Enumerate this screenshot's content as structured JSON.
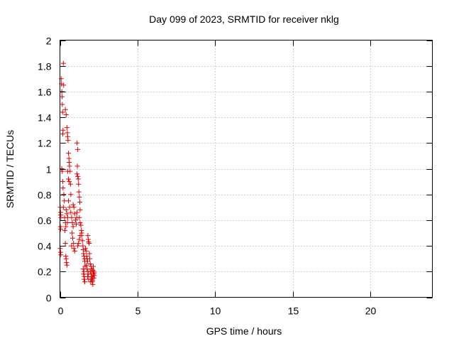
{
  "chart_data": {
    "type": "scatter",
    "title": "Day 099 of 2023, SRMTID for receiver nklg",
    "xlabel": "GPS time / hours",
    "ylabel": "SRMTID / TECUs",
    "xlim": [
      0,
      24
    ],
    "ylim": [
      0,
      2
    ],
    "xticks": [
      0,
      5,
      10,
      15,
      20
    ],
    "xtick_labels": [
      "0",
      "5",
      "10",
      "15",
      "20"
    ],
    "yticks": [
      0,
      0.2,
      0.4,
      0.6,
      0.8,
      1,
      1.2,
      1.4,
      1.6,
      1.8,
      2
    ],
    "ytick_labels": [
      "0",
      "0.2",
      "0.4",
      "0.6",
      "0.8",
      "1",
      "1.2",
      "1.4",
      "1.6",
      "1.8",
      "2"
    ],
    "grid": true,
    "marker": "+",
    "marker_color": "#e00000",
    "series": [
      {
        "name": "SRMTID",
        "points": [
          [
            0.02,
            0.7
          ],
          [
            0.04,
            0.66
          ],
          [
            0.05,
            0.64
          ],
          [
            0.06,
            0.62
          ],
          [
            0.03,
            0.55
          ],
          [
            0.05,
            0.53
          ],
          [
            0.02,
            0.38
          ],
          [
            0.04,
            0.35
          ],
          [
            0.06,
            0.33
          ],
          [
            0.08,
            1.7
          ],
          [
            0.1,
            1.66
          ],
          [
            0.12,
            1.6
          ],
          [
            0.14,
            1.56
          ],
          [
            0.15,
            1.5
          ],
          [
            0.17,
            1.44
          ],
          [
            0.2,
            1.3
          ],
          [
            0.18,
            1.27
          ],
          [
            0.22,
            1.82
          ],
          [
            0.24,
            1.65
          ],
          [
            0.12,
            1.0
          ],
          [
            0.15,
            0.98
          ],
          [
            0.18,
            0.9
          ],
          [
            0.2,
            0.85
          ],
          [
            0.25,
            0.8
          ],
          [
            0.28,
            0.75
          ],
          [
            0.22,
            0.7
          ],
          [
            0.3,
            0.62
          ],
          [
            0.35,
            0.58
          ],
          [
            0.38,
            0.55
          ],
          [
            0.32,
            0.52
          ],
          [
            0.35,
            1.46
          ],
          [
            0.4,
            1.42
          ],
          [
            0.45,
            1.32
          ],
          [
            0.48,
            1.28
          ],
          [
            0.5,
            1.25
          ],
          [
            0.52,
            1.22
          ],
          [
            0.55,
            1.12
          ],
          [
            0.58,
            1.08
          ],
          [
            0.6,
            1.05
          ],
          [
            0.62,
            1.02
          ],
          [
            0.65,
            0.98
          ],
          [
            0.5,
            0.98
          ],
          [
            0.55,
            0.92
          ],
          [
            0.6,
            0.9
          ],
          [
            0.68,
            0.88
          ],
          [
            0.7,
            0.8
          ],
          [
            0.55,
            0.75
          ],
          [
            0.62,
            0.7
          ],
          [
            0.4,
            0.68
          ],
          [
            0.45,
            0.65
          ],
          [
            0.5,
            0.62
          ],
          [
            0.48,
            0.58
          ],
          [
            0.35,
            0.42
          ],
          [
            0.38,
            0.32
          ],
          [
            0.4,
            0.3
          ],
          [
            0.42,
            0.27
          ],
          [
            0.45,
            0.25
          ],
          [
            0.7,
            0.66
          ],
          [
            0.75,
            0.62
          ],
          [
            0.8,
            0.58
          ],
          [
            0.85,
            0.55
          ],
          [
            0.78,
            0.5
          ],
          [
            0.82,
            0.46
          ],
          [
            0.88,
            0.42
          ],
          [
            0.9,
            0.38
          ],
          [
            0.95,
            0.36
          ],
          [
            0.75,
            0.4
          ],
          [
            0.85,
            0.72
          ],
          [
            0.9,
            0.7
          ],
          [
            0.95,
            0.65
          ],
          [
            1.0,
            0.6
          ],
          [
            1.05,
            0.57
          ],
          [
            1.08,
            0.62
          ],
          [
            1.1,
            0.66
          ],
          [
            1.1,
            1.2
          ],
          [
            1.15,
            1.15
          ],
          [
            1.12,
            1.02
          ],
          [
            1.1,
            0.96
          ],
          [
            1.15,
            0.94
          ],
          [
            1.18,
            0.92
          ],
          [
            1.2,
            0.88
          ],
          [
            1.22,
            0.82
          ],
          [
            1.25,
            0.78
          ],
          [
            1.28,
            0.74
          ],
          [
            1.3,
            0.68
          ],
          [
            1.25,
            0.62
          ],
          [
            1.3,
            0.58
          ],
          [
            1.35,
            0.56
          ],
          [
            1.38,
            0.52
          ],
          [
            1.4,
            0.5
          ],
          [
            1.3,
            0.48
          ],
          [
            1.25,
            0.45
          ],
          [
            1.2,
            0.42
          ],
          [
            1.15,
            0.4
          ],
          [
            1.4,
            0.48
          ],
          [
            1.45,
            0.44
          ],
          [
            1.48,
            0.4
          ],
          [
            1.5,
            0.37
          ],
          [
            1.52,
            0.34
          ],
          [
            1.55,
            0.32
          ],
          [
            1.58,
            0.3
          ],
          [
            1.6,
            0.28
          ],
          [
            1.62,
            0.24
          ],
          [
            1.5,
            0.22
          ],
          [
            1.55,
            0.2
          ],
          [
            1.52,
            0.18
          ],
          [
            1.58,
            0.16
          ],
          [
            1.55,
            0.14
          ],
          [
            1.6,
            0.12
          ],
          [
            1.65,
            0.38
          ],
          [
            1.7,
            0.36
          ],
          [
            1.72,
            0.32
          ],
          [
            1.75,
            0.3
          ],
          [
            1.78,
            0.28
          ],
          [
            1.7,
            0.25
          ],
          [
            1.75,
            0.22
          ],
          [
            1.8,
            0.2
          ],
          [
            1.82,
            0.18
          ],
          [
            1.78,
            0.16
          ],
          [
            1.85,
            0.14
          ],
          [
            1.8,
            0.48
          ],
          [
            1.82,
            0.45
          ],
          [
            1.85,
            0.43
          ],
          [
            1.88,
            0.42
          ],
          [
            1.9,
            0.34
          ],
          [
            1.92,
            0.3
          ],
          [
            1.95,
            0.26
          ],
          [
            2.0,
            0.24
          ],
          [
            2.05,
            0.22
          ],
          [
            1.95,
            0.2
          ],
          [
            2.0,
            0.18
          ],
          [
            2.05,
            0.16
          ],
          [
            2.1,
            0.15
          ],
          [
            1.98,
            0.12
          ],
          [
            2.02,
            0.14
          ],
          [
            2.08,
            0.12
          ],
          [
            2.1,
            0.13
          ],
          [
            2.12,
            0.1
          ],
          [
            2.15,
            0.18
          ],
          [
            2.12,
            0.21
          ],
          [
            2.15,
            0.24
          ],
          [
            2.18,
            0.2
          ],
          [
            2.2,
            0.19
          ],
          [
            2.22,
            0.17
          ],
          [
            2.18,
            0.15
          ]
        ]
      }
    ]
  }
}
